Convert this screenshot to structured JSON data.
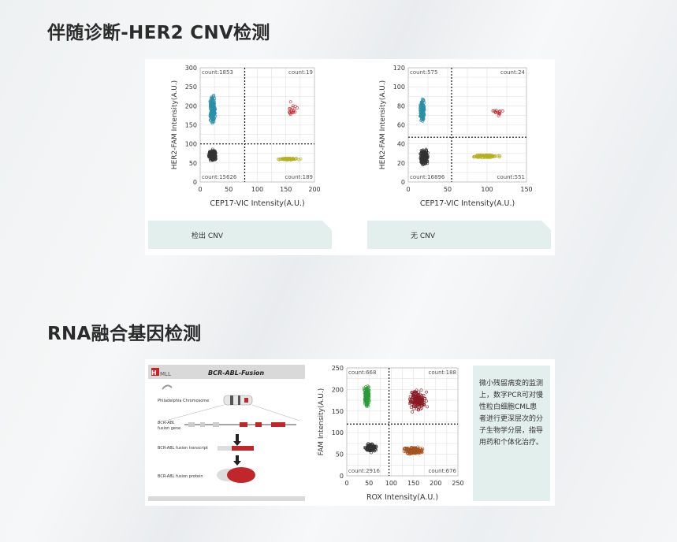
{
  "section1": {
    "title": "伴随诊断-HER2 CNV检测"
  },
  "section2": {
    "title": "RNA融合基因检测"
  },
  "plot1": {
    "ylabel": "HER2-FAM Intensity(A.U.)",
    "xlabel": "CEP17-VIC Intensity(A.U.)",
    "yticks": [
      "300",
      "250",
      "200",
      "150",
      "100",
      "50",
      "0"
    ],
    "xticks": [
      "0",
      "50",
      "100",
      "150",
      "200"
    ],
    "counts": {
      "tl": "count:1853",
      "tr": "count:19",
      "bl": "count:15626",
      "br": "count:189"
    },
    "note": "检出 CNV"
  },
  "plot2": {
    "ylabel": "HER2-FAM Intensity(A.U.)",
    "xlabel": "CEP17-VIC Intensity(A.U.)",
    "yticks": [
      "120",
      "100",
      "80",
      "60",
      "40",
      "20",
      "0"
    ],
    "xticks": [
      "0",
      "50",
      "100",
      "150"
    ],
    "counts": {
      "tl": "count:575",
      "tr": "count:24",
      "bl": "count:16896",
      "br": "count:551"
    },
    "note": "无 CNV"
  },
  "plot3": {
    "ylabel": "FAM Intensity(A.U.)",
    "xlabel": "ROX Intensity(A.U.)",
    "yticks": [
      "250",
      "200",
      "150",
      "100",
      "50",
      "0"
    ],
    "xticks": [
      "0",
      "50",
      "100",
      "150",
      "200",
      "250"
    ],
    "counts": {
      "tl": "count:668",
      "tr": "count:188",
      "bl": "count:2916",
      "br": "count:676"
    }
  },
  "fusion": {
    "logo": "MLL",
    "title": "BCR-ABL-Fusion",
    "chromosome": "Philadelphia Chromosome",
    "gene": "BCR-ABL\nfusion gene",
    "transcript": "BCR-ABL fusion transcript",
    "protein": "BCR-ABL fusion protein"
  },
  "description": "微小残留病变的监测上，数字PCR可对慢性粒白细胞CML患者进行更深层次的分子生物学分层，指导用药和个体化治疗。",
  "colors": {
    "teal": "#2a8fa8",
    "red": "#c0262a",
    "olive": "#b4b020",
    "dark": "#333333",
    "green": "#2e9a3a",
    "maroon": "#8a1a22",
    "brown": "#a4521e",
    "note_bg": "#e3efec"
  }
}
